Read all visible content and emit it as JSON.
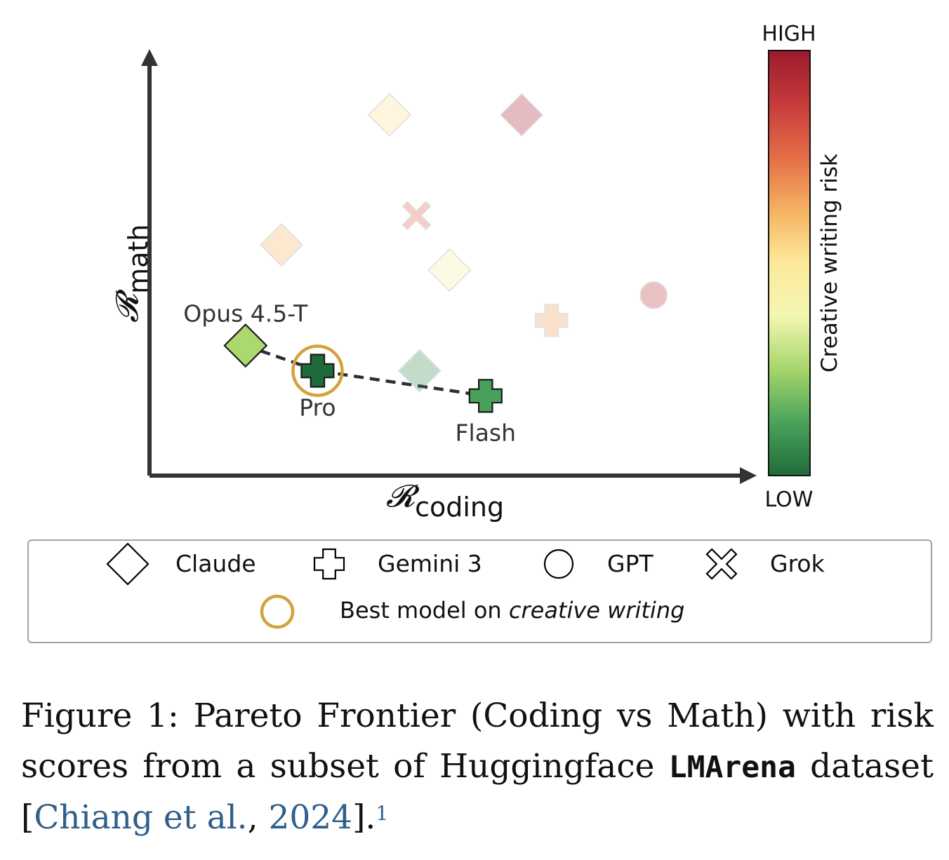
{
  "chart_data": {
    "type": "scatter",
    "xlabel_symbol": "𝓡",
    "xlabel_sub": "coding",
    "ylabel_symbol": "𝓡",
    "ylabel_sub": "math",
    "colorbar": {
      "label": "Creative writing risk",
      "high_label": "HIGH",
      "low_label": "LOW",
      "colors": [
        "#1f6b3a",
        "#4aa35c",
        "#a6d56a",
        "#f2f7b2",
        "#fde99a",
        "#f6b162",
        "#e46c46",
        "#c63a3a",
        "#9a1b2e"
      ]
    },
    "points": [
      {
        "family": "Claude",
        "marker": "diamond",
        "x": 0.4,
        "y": 0.86,
        "risk": 0.52,
        "faded": true,
        "label": ""
      },
      {
        "family": "Claude",
        "marker": "diamond",
        "x": 0.62,
        "y": 0.86,
        "risk": 0.97,
        "faded": true,
        "label": ""
      },
      {
        "family": "Grok",
        "marker": "x",
        "x": 0.445,
        "y": 0.62,
        "risk": 0.78,
        "faded": true,
        "label": ""
      },
      {
        "family": "Claude",
        "marker": "diamond",
        "x": 0.22,
        "y": 0.55,
        "risk": 0.62,
        "faded": true,
        "label": ""
      },
      {
        "family": "Claude",
        "marker": "diamond",
        "x": 0.5,
        "y": 0.49,
        "risk": 0.45,
        "faded": true,
        "label": ""
      },
      {
        "family": "GPT",
        "marker": "circle",
        "x": 0.84,
        "y": 0.43,
        "risk": 0.9,
        "faded": true,
        "label": ""
      },
      {
        "family": "Gemini 3",
        "marker": "plus",
        "x": 0.67,
        "y": 0.37,
        "risk": 0.66,
        "faded": true,
        "label": ""
      },
      {
        "family": "Claude",
        "marker": "diamond",
        "x": 0.45,
        "y": 0.25,
        "risk": 0.08,
        "faded": true,
        "label": ""
      },
      {
        "family": "Claude",
        "marker": "diamond",
        "x": 0.16,
        "y": 0.31,
        "risk": 0.26,
        "faded": false,
        "label": "Opus 4.5-T",
        "label_pos": "above"
      },
      {
        "family": "Gemini 3",
        "marker": "plus",
        "x": 0.28,
        "y": 0.25,
        "risk": 0.0,
        "faded": false,
        "label": "Pro",
        "label_pos": "below",
        "best": true
      },
      {
        "family": "Gemini 3",
        "marker": "plus",
        "x": 0.56,
        "y": 0.19,
        "risk": 0.12,
        "faded": false,
        "label": "Flash",
        "label_pos": "below"
      }
    ],
    "pareto_frontier": [
      [
        0.16,
        0.31
      ],
      [
        0.28,
        0.25
      ],
      [
        0.56,
        0.19
      ]
    ],
    "legend": {
      "items": [
        {
          "marker": "diamond",
          "label": "Claude"
        },
        {
          "marker": "plus",
          "label": "Gemini 3"
        },
        {
          "marker": "circle",
          "label": "GPT"
        },
        {
          "marker": "x",
          "label": "Grok"
        }
      ],
      "best_prefix": "Best model on ",
      "best_emph": "creative writing"
    }
  },
  "caption": {
    "prefix": "Figure 1:  Pareto Frontier (Coding vs Math) with risk scores from a subset of Huggingface ",
    "dataset": "LMArena",
    "middle": " dataset [",
    "cite_authors": "Chiang et al.",
    "cite_sep": ", ",
    "cite_year": "2024",
    "suffix": "].",
    "footnote": "1"
  }
}
